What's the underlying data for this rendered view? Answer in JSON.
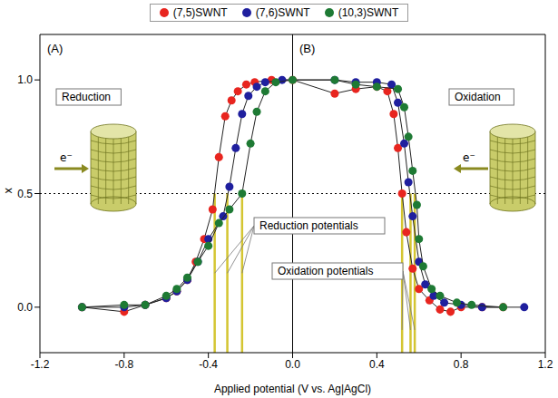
{
  "chart_data": {
    "type": "scatter",
    "x_label": "Applied potential (V vs. Ag|AgCl)",
    "y_label": "x",
    "xlim": [
      -1.2,
      1.2
    ],
    "xticks": [
      -1.2,
      -0.8,
      -0.4,
      {
        "value": 0,
        "label": "0.0"
      },
      0.4,
      0.8,
      1.2
    ],
    "ylim": [
      -0.2,
      1.2
    ],
    "yticks": [
      {
        "value": 0,
        "label": "0.0"
      },
      {
        "value": 0.5,
        "label": "0.5"
      },
      {
        "value": 1,
        "label": "1.0"
      }
    ],
    "grid": false,
    "legend": "top",
    "hline": 0.5,
    "vline": 0,
    "series": [
      {
        "name": "(7,5)SWNT",
        "color": "#e8251f",
        "marker": "circle",
        "line_style": "solid",
        "x": [
          -1.0,
          -0.8,
          -0.7,
          -0.6,
          -0.55,
          -0.5,
          -0.46,
          -0.42,
          -0.38,
          -0.35,
          -0.32,
          -0.29,
          -0.26,
          -0.22,
          -0.18,
          -0.1,
          0.0,
          0.2,
          0.3,
          0.4,
          0.45,
          0.48,
          0.5,
          0.52,
          0.54,
          0.57,
          0.6,
          0.65,
          0.7,
          0.75,
          0.8,
          0.9,
          1.0
        ],
        "values": [
          0.0,
          -0.02,
          0.01,
          0.04,
          0.07,
          0.12,
          0.2,
          0.3,
          0.43,
          0.66,
          0.84,
          0.91,
          0.95,
          0.98,
          0.99,
          1.0,
          1.0,
          0.94,
          0.96,
          0.97,
          0.95,
          0.85,
          0.7,
          0.5,
          0.33,
          0.17,
          0.08,
          0.03,
          -0.01,
          -0.02,
          0.0,
          0.0,
          0.0
        ]
      },
      {
        "name": "(7,6)SWNT",
        "color": "#1f1f9e",
        "marker": "circle",
        "line_style": "solid",
        "x": [
          -1.0,
          -0.8,
          -0.7,
          -0.6,
          -0.55,
          -0.5,
          -0.45,
          -0.4,
          -0.33,
          -0.3,
          -0.27,
          -0.24,
          -0.21,
          -0.17,
          -0.13,
          -0.05,
          0.2,
          0.3,
          0.4,
          0.47,
          0.5,
          0.53,
          0.55,
          0.57,
          0.6,
          0.63,
          0.67,
          0.72,
          0.8,
          0.9,
          1.1
        ],
        "values": [
          0.0,
          0.0,
          0.01,
          0.04,
          0.07,
          0.12,
          0.2,
          0.3,
          0.4,
          0.53,
          0.7,
          0.85,
          0.93,
          0.97,
          0.99,
          1.0,
          1.0,
          0.99,
          0.99,
          0.98,
          0.9,
          0.72,
          0.55,
          0.4,
          0.2,
          0.1,
          0.05,
          0.02,
          0.01,
          0.0,
          0.0
        ]
      },
      {
        "name": "(10,3)SWNT",
        "color": "#1e7a34",
        "marker": "circle",
        "line_style": "solid",
        "x": [
          -1.0,
          -0.8,
          -0.7,
          -0.6,
          -0.55,
          -0.5,
          -0.45,
          -0.4,
          -0.35,
          -0.3,
          -0.24,
          -0.2,
          -0.17,
          -0.13,
          -0.08,
          0.0,
          0.2,
          0.3,
          0.4,
          0.5,
          0.53,
          0.55,
          0.57,
          0.59,
          0.6,
          0.62,
          0.66,
          0.7,
          0.78,
          0.85,
          1.0
        ],
        "values": [
          0.0,
          0.01,
          0.01,
          0.05,
          0.08,
          0.13,
          0.2,
          0.27,
          0.37,
          0.43,
          0.5,
          0.72,
          0.86,
          0.95,
          0.99,
          1.0,
          1.0,
          0.98,
          0.97,
          0.96,
          0.88,
          0.75,
          0.6,
          0.45,
          0.3,
          0.18,
          0.08,
          0.05,
          0.02,
          0.01,
          0.0
        ]
      }
    ],
    "potentials": {
      "reduction": [
        -0.37,
        -0.31,
        -0.24
      ],
      "oxidation": [
        0.52,
        0.56,
        0.58
      ]
    },
    "annotations": {
      "panel_a": "(A)",
      "panel_b": "(B)",
      "reduction": "Reduction",
      "oxidation": "Oxidation",
      "electron": "e⁻",
      "reduction_potentials": "Reduction potentials",
      "oxidation_potentials": "Oxidation potentials"
    }
  }
}
